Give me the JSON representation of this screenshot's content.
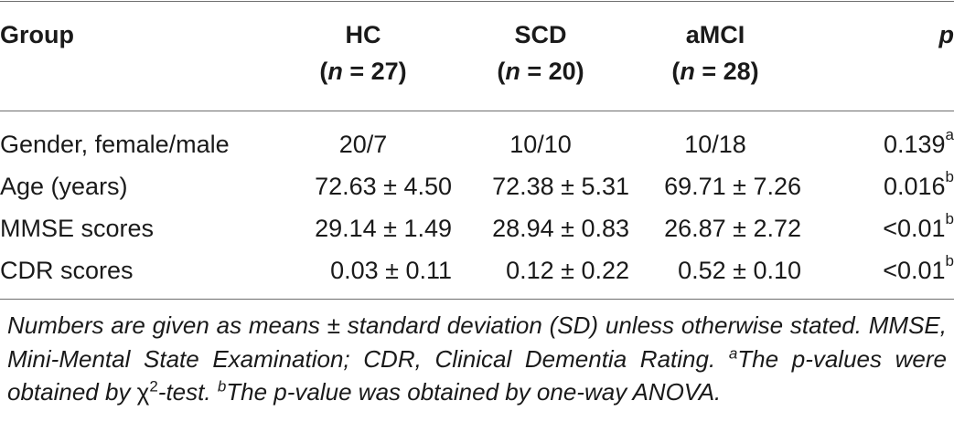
{
  "table": {
    "headers": {
      "group": "Group",
      "hc": "HC",
      "hc_n_prefix": "(",
      "hc_n_var": "n",
      "hc_n_value": " = 27)",
      "scd": "SCD",
      "scd_n_prefix": "(",
      "scd_n_var": "n",
      "scd_n_value": " = 20)",
      "amci": "aMCI",
      "amci_n_prefix": "(",
      "amci_n_var": "n",
      "amci_n_value": " = 28)",
      "p": "p"
    },
    "rows": [
      {
        "label": "Gender, female/male",
        "hc": "20/7",
        "scd": "10/10",
        "amci": "10/18",
        "p": "0.139",
        "p_note": "a"
      },
      {
        "label": "Age (years)",
        "hc": "72.63 ± 4.50",
        "scd": "72.38 ± 5.31",
        "amci": "69.71 ± 7.26",
        "p": "0.016",
        "p_note": "b"
      },
      {
        "label": "MMSE scores",
        "hc": "29.14 ± 1.49",
        "scd": "28.94 ± 0.83",
        "amci": "26.87 ± 2.72",
        "p": "<0.01",
        "p_note": "b"
      },
      {
        "label": "CDR scores",
        "hc": "0.03 ± 0.11",
        "scd": "0.12 ± 0.22",
        "amci": "0.52 ± 0.10",
        "p": "<0.01",
        "p_note": "b"
      }
    ]
  },
  "footnote": {
    "line1": "Numbers are given as means ± standard deviation (SD) unless otherwise stated. MMSE, Mini-Mental State Examination; CDR, Clinical Dementia Rating. ",
    "note_a_mark": "a",
    "note_a_text_1": "The p-values were obtained by ",
    "chi_symbol": "χ",
    "chi_exp": "2",
    "note_a_text_2": "-test. ",
    "note_b_mark": "b",
    "note_b_text": "The p-value was obtained by one-way ANOVA."
  }
}
